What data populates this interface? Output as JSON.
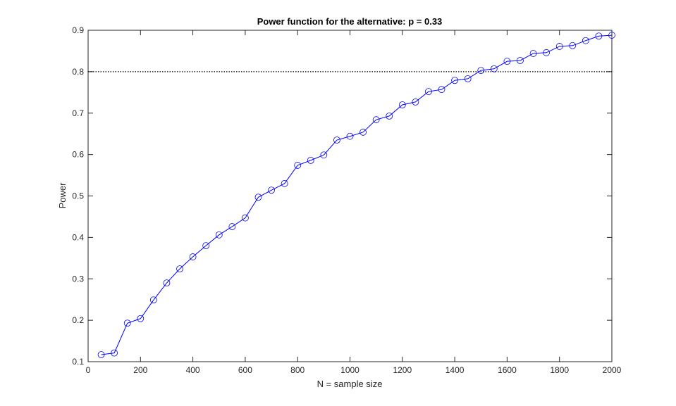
{
  "chart_data": {
    "type": "line",
    "title": "Power function for the alternative: p = 0.33",
    "x_label": "N = sample size",
    "y_label": "Power",
    "x": [
      50,
      100,
      150,
      200,
      250,
      300,
      350,
      400,
      450,
      500,
      550,
      600,
      650,
      700,
      750,
      800,
      850,
      900,
      950,
      1000,
      1050,
      1100,
      1150,
      1200,
      1250,
      1300,
      1350,
      1400,
      1450,
      1500,
      1550,
      1600,
      1650,
      1700,
      1750,
      1800,
      1850,
      1900,
      1950,
      2000
    ],
    "series": [
      {
        "name": "Power",
        "color": "#0000ff",
        "marker": "circle",
        "values": [
          0.117,
          0.121,
          0.193,
          0.204,
          0.249,
          0.29,
          0.324,
          0.353,
          0.38,
          0.406,
          0.426,
          0.447,
          0.497,
          0.514,
          0.53,
          0.574,
          0.586,
          0.599,
          0.635,
          0.644,
          0.654,
          0.684,
          0.693,
          0.72,
          0.727,
          0.752,
          0.757,
          0.779,
          0.783,
          0.803,
          0.807,
          0.825,
          0.827,
          0.844,
          0.846,
          0.861,
          0.863,
          0.875,
          0.886,
          0.888
        ]
      }
    ],
    "reference_line": {
      "value": 0.8,
      "color": "#000000",
      "style": "dotted"
    },
    "xlim": [
      0,
      2000
    ],
    "xticks": [
      0,
      200,
      400,
      600,
      800,
      1000,
      1200,
      1400,
      1600,
      1800,
      2000
    ],
    "ylim": [
      0.1,
      0.9
    ],
    "yticks": [
      0.1,
      0.2,
      0.3,
      0.4,
      0.5,
      0.6,
      0.7,
      0.8,
      0.9
    ],
    "grid": false
  }
}
